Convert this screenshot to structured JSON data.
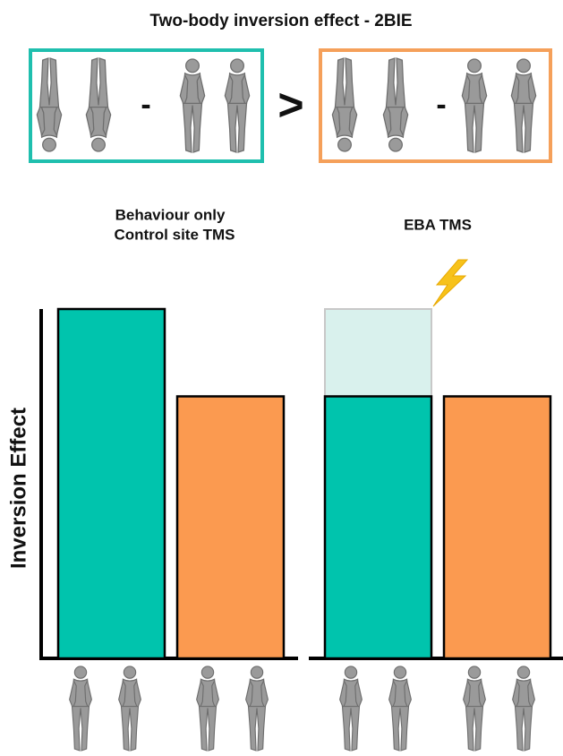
{
  "header": {
    "title": "Two-body inversion effect - 2BIE",
    "minus_left": "-",
    "comparison": ">",
    "minus_right": "-"
  },
  "chart_data": [
    {
      "type": "bar",
      "title_lines": [
        "Behaviour only",
        "Control site TMS"
      ],
      "y_label": "Inversion Effect",
      "categories": [
        null,
        null
      ],
      "values": [
        100,
        75
      ],
      "colors": [
        "#00c4ad",
        "#fb9a50"
      ],
      "ylim": [
        0,
        100
      ]
    },
    {
      "type": "bar",
      "title_lines": [
        "EBA TMS"
      ],
      "categories": [
        null,
        null
      ],
      "values": [
        75,
        75
      ],
      "ghost_values": [
        100,
        null
      ],
      "ghost_color": "#d9f1ed",
      "colors": [
        "#00c4ad",
        "#fb9a50"
      ],
      "ylim": [
        0,
        100
      ]
    }
  ]
}
